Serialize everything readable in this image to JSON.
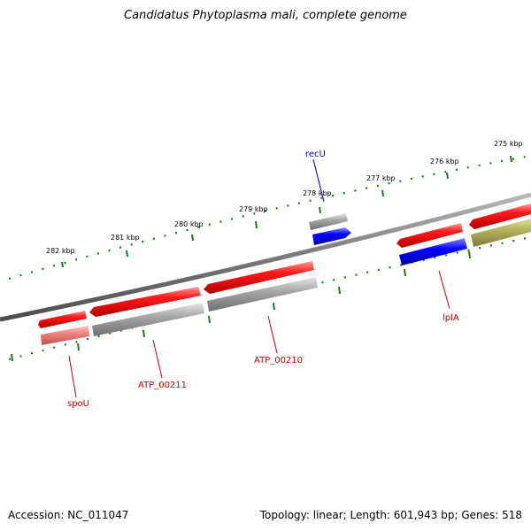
{
  "title": "Candidatus Phytoplasma mali, complete genome",
  "accession_text": "Accession: NC_011047",
  "summary_text": "Topology: linear; Length: 601,943 bp; Genes: 518",
  "colors": {
    "backbone": "#808080",
    "tick_marks": "#1a7a1a",
    "forward_gene": "#ff0000",
    "pseudo_or_other": "#a0a0a0",
    "blue_gene": "#0000ff",
    "olive_gene": "#b5b25c",
    "pink_gene": "#f08080",
    "label_red": "#cc0000",
    "label_blue": "#0000cc"
  },
  "scale_labels": [
    "282 kbp",
    "281 kbp",
    "280 kbp",
    "279 kbp",
    "278 kbp",
    "277 kbp",
    "276 kbp",
    "275 kbp"
  ],
  "gene_labels": [
    {
      "name": "recU",
      "color": "blue"
    },
    {
      "name": "lplA",
      "color": "red"
    },
    {
      "name": "ATP_00210",
      "color": "red"
    },
    {
      "name": "ATP_00211",
      "color": "red"
    },
    {
      "name": "spoU",
      "color": "red"
    }
  ]
}
